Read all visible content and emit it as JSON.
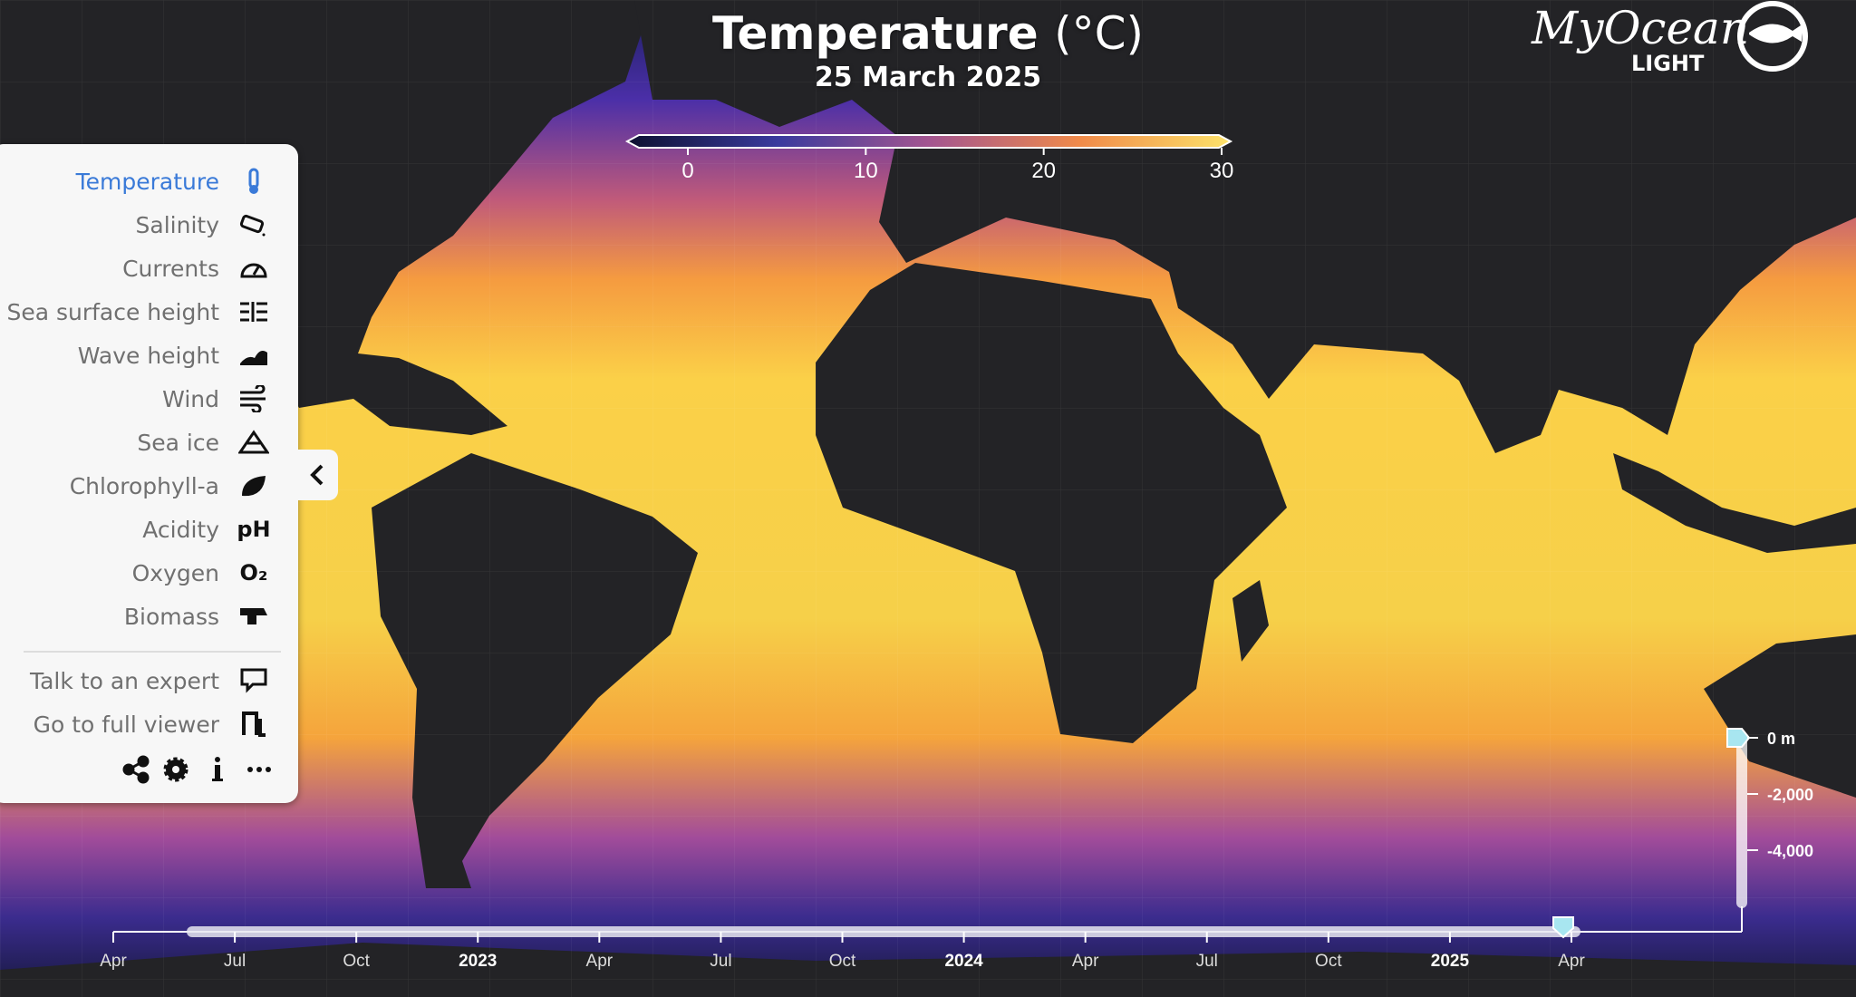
{
  "header": {
    "title": "Temperature",
    "unit": "(°C)",
    "date": "25 March 2025"
  },
  "logo": {
    "name": "MyOcean",
    "edition": "LIGHT"
  },
  "colorbar": {
    "ticks": [
      0,
      10,
      20,
      30
    ]
  },
  "menu": {
    "items": [
      {
        "label": "Temperature",
        "active": true
      },
      {
        "label": "Salinity"
      },
      {
        "label": "Currents"
      },
      {
        "label": "Sea surface height"
      },
      {
        "label": "Wave height"
      },
      {
        "label": "Wind"
      },
      {
        "label": "Sea ice"
      },
      {
        "label": "Chlorophyll-a"
      },
      {
        "label": "Acidity",
        "icon_text": "pH"
      },
      {
        "label": "Oxygen",
        "icon_text": "O₂"
      },
      {
        "label": "Biomass"
      }
    ],
    "links": [
      "Talk to an expert",
      "Go to full viewer"
    ]
  },
  "depth": {
    "labels": [
      "0 m",
      "-2,000",
      "-4,000"
    ]
  },
  "timeline": {
    "labels": [
      "Apr",
      "Jul",
      "Oct",
      "2023",
      "Apr",
      "Jul",
      "Oct",
      "2024",
      "Apr",
      "Jul",
      "Oct",
      "2025",
      "Apr"
    ]
  }
}
